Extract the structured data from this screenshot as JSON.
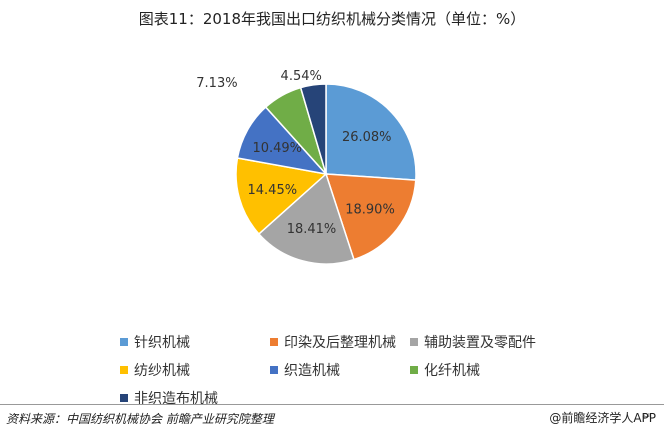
{
  "title": "图表11：2018年我国出口纺织机械分类情况（单位：%）",
  "chart_data": {
    "type": "pie",
    "title": "图表11：2018年我国出口纺织机械分类情况（单位：%）",
    "categories": [
      "针织机械",
      "印染及后整理机械",
      "辅助装置及零配件",
      "纺纱机械",
      "织造机械",
      "化纤机械",
      "非织造布机械"
    ],
    "values": [
      26.08,
      18.9,
      18.41,
      14.45,
      10.49,
      7.13,
      4.54
    ],
    "labels": [
      "26.08%",
      "18.90%",
      "18.41%",
      "14.45%",
      "10.49%",
      "7.13%",
      "4.54%"
    ],
    "colors": [
      "#5B9BD5",
      "#ED7D31",
      "#A5A5A5",
      "#FFC000",
      "#4472C4",
      "#70AD47",
      "#264478"
    ],
    "legend_position": "bottom",
    "start_angle_deg": 0,
    "direction": "clockwise"
  },
  "source": "资料来源：中国纺织机械协会 前瞻产业研究院整理",
  "brand": "@前瞻经济学人APP",
  "return_mark": "↵"
}
